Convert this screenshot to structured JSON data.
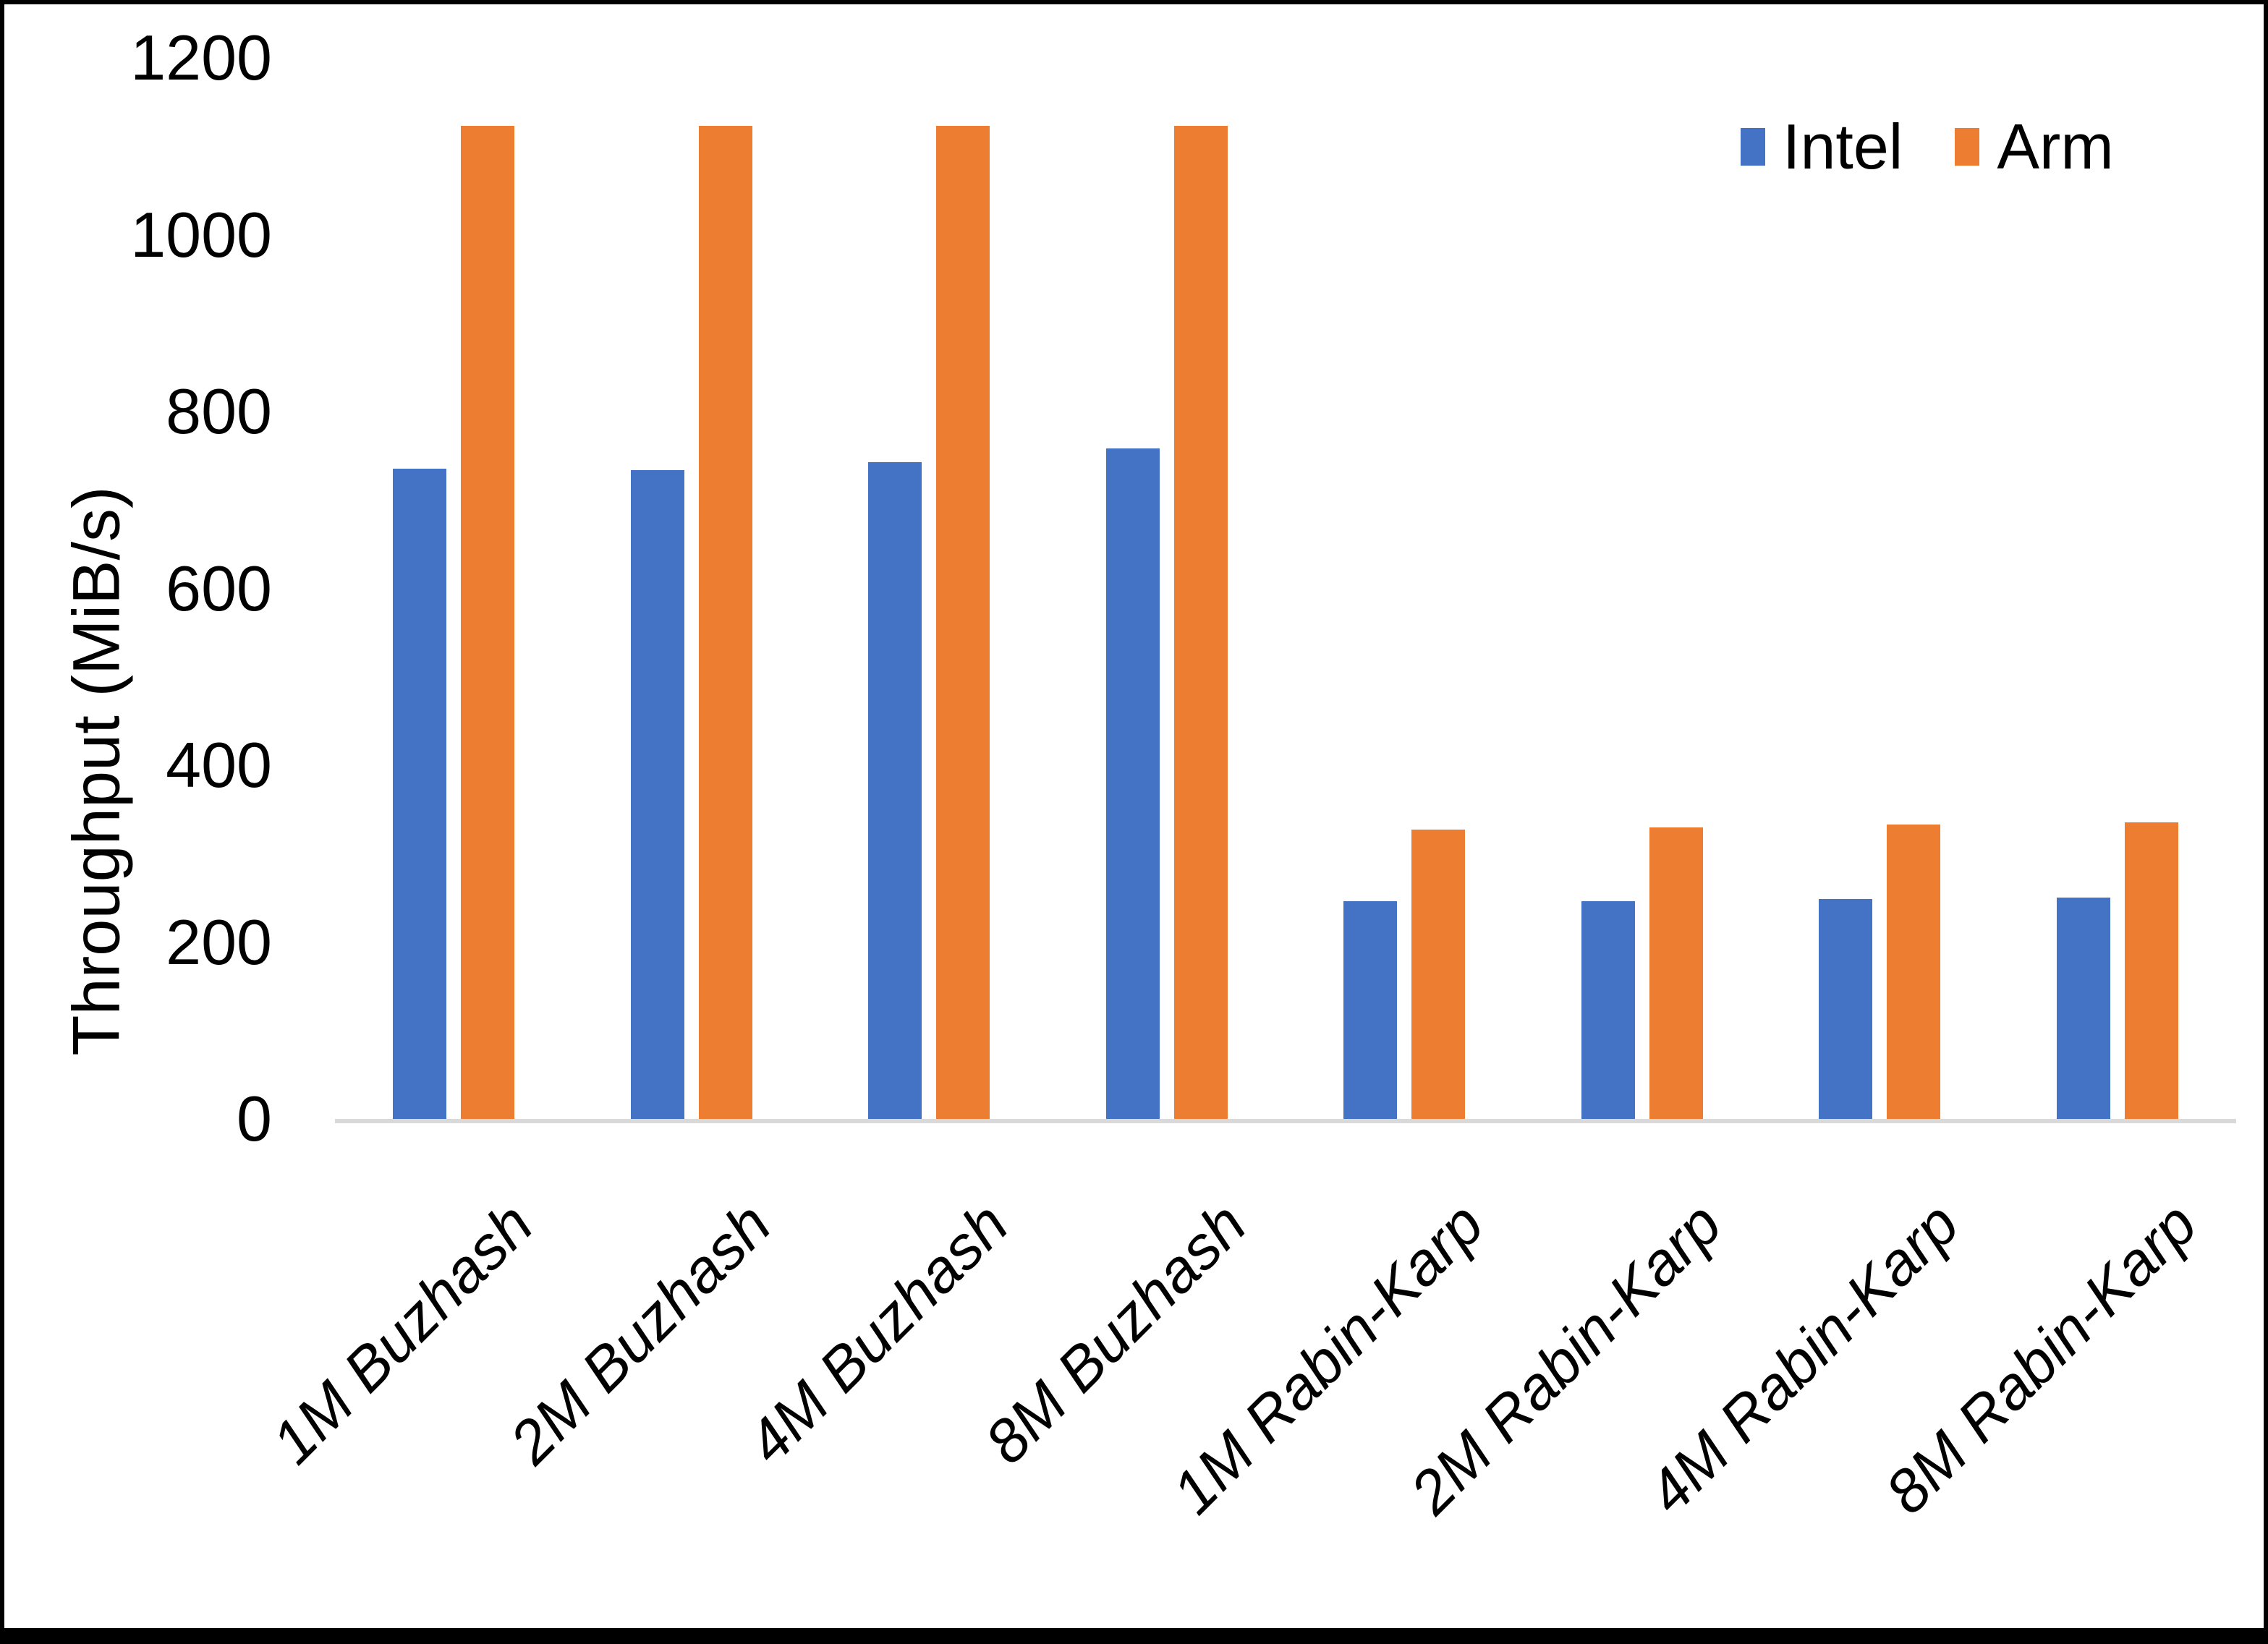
{
  "chart_data": {
    "type": "bar",
    "title": "",
    "ylabel": "Throughput (MiB/s)",
    "xlabel": "",
    "categories": [
      "1M Buzhash",
      "2M Buzhash",
      "4M Buzhash",
      "8M Buzhash",
      "1M Rabin-Karp",
      "2M Rabin-Karp",
      "4M Rabin-Karp",
      "8M Rabin-Karp"
    ],
    "series": [
      {
        "name": "Intel",
        "color": "#4472C4",
        "values": [
          735,
          734,
          743,
          758,
          246,
          246,
          249,
          250
        ]
      },
      {
        "name": "Arm",
        "color": "#ED7D31",
        "values": [
          1123,
          1123,
          1123,
          1123,
          327,
          330,
          333,
          335
        ]
      }
    ],
    "ylim": [
      0,
      1200
    ],
    "yticks": [
      0,
      200,
      400,
      600,
      800,
      1000,
      1200
    ],
    "legend": {
      "position": "top-right",
      "entries": [
        "Intel",
        "Arm"
      ]
    },
    "grid": false,
    "axis_line_color": "#D9D9D9",
    "text_color": "#000000",
    "background_color": "#FFFFFF"
  }
}
